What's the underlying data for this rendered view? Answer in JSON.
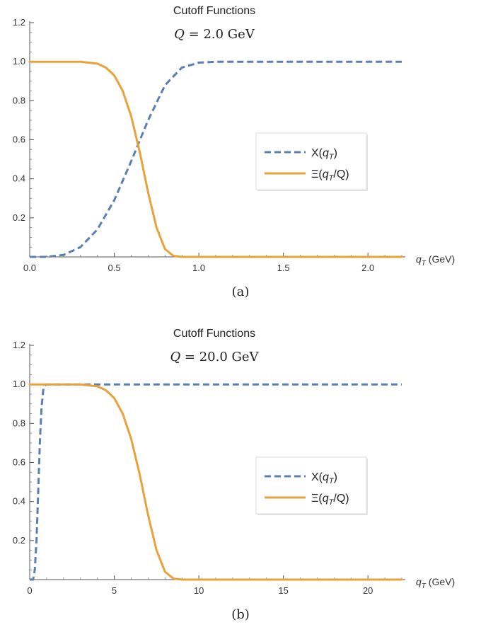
{
  "chart_data": [
    {
      "type": "line",
      "title": "Cutoff Functions",
      "subtitle": "Q = 2.0 GeV",
      "xlabel": "q_T (GeV)",
      "ylabel": "",
      "xlim": [
        0,
        2.2
      ],
      "ylim": [
        0,
        1.2
      ],
      "xticks": [
        0.0,
        0.5,
        1.0,
        1.5,
        2.0
      ],
      "xtick_labels": [
        "0.0",
        "0.5",
        "1.0",
        "1.5",
        "2.0"
      ],
      "yticks": [
        0.2,
        0.4,
        0.6,
        0.8,
        1.0,
        1.2
      ],
      "ytick_labels": [
        "0.2",
        "0.4",
        "0.6",
        "0.8",
        "1.0",
        "1.2"
      ],
      "legend_position": "right",
      "caption": "(a)",
      "series": [
        {
          "name": "X(q_T)",
          "style": "dashed",
          "color": "#5b7fb5",
          "x": [
            0.0,
            0.1,
            0.2,
            0.3,
            0.4,
            0.5,
            0.6,
            0.7,
            0.8,
            0.9,
            1.0,
            1.1,
            1.2,
            1.5,
            2.0,
            2.2
          ],
          "y": [
            0.0,
            0.0,
            0.01,
            0.05,
            0.14,
            0.29,
            0.49,
            0.7,
            0.88,
            0.97,
            0.995,
            1.0,
            1.0,
            1.0,
            1.0,
            1.0
          ]
        },
        {
          "name": "Ξ(q_T/Q)",
          "style": "solid",
          "color": "#e8a23a",
          "x": [
            0.0,
            0.1,
            0.2,
            0.3,
            0.4,
            0.45,
            0.5,
            0.55,
            0.6,
            0.65,
            0.7,
            0.75,
            0.8,
            0.85,
            0.9,
            1.0,
            2.2
          ],
          "y": [
            1.0,
            1.0,
            1.0,
            1.0,
            0.99,
            0.97,
            0.93,
            0.85,
            0.72,
            0.54,
            0.33,
            0.15,
            0.04,
            0.005,
            0.0,
            0.0,
            0.0
          ]
        }
      ]
    },
    {
      "type": "line",
      "title": "Cutoff Functions",
      "subtitle": "Q = 20.0 GeV",
      "xlabel": "q_T (GeV)",
      "ylabel": "",
      "xlim": [
        0,
        22
      ],
      "ylim": [
        0,
        1.2
      ],
      "xticks": [
        0,
        5,
        10,
        15,
        20
      ],
      "xtick_labels": [
        "0",
        "5",
        "10",
        "15",
        "20"
      ],
      "yticks": [
        0.2,
        0.4,
        0.6,
        0.8,
        1.0,
        1.2
      ],
      "ytick_labels": [
        "0.2",
        "0.4",
        "0.6",
        "0.8",
        "1.0",
        "1.2"
      ],
      "legend_position": "right",
      "caption": "(b)",
      "series": [
        {
          "name": "X(q_T)",
          "style": "dashed",
          "color": "#5b7fb5",
          "x": [
            0.0,
            0.2,
            0.3,
            0.4,
            0.5,
            0.6,
            0.7,
            0.8,
            0.9,
            1.0,
            1.2,
            2.0,
            22.0
          ],
          "y": [
            0.0,
            0.0,
            0.05,
            0.2,
            0.45,
            0.7,
            0.88,
            0.97,
            0.995,
            1.0,
            1.0,
            1.0,
            1.0
          ]
        },
        {
          "name": "Ξ(q_T/Q)",
          "style": "solid",
          "color": "#e8a23a",
          "x": [
            0.0,
            2.0,
            3.0,
            4.0,
            4.5,
            5.0,
            5.5,
            6.0,
            6.5,
            7.0,
            7.5,
            8.0,
            8.5,
            9.0,
            10.0,
            22.0
          ],
          "y": [
            1.0,
            1.0,
            1.0,
            0.99,
            0.97,
            0.93,
            0.85,
            0.72,
            0.54,
            0.33,
            0.15,
            0.04,
            0.005,
            0.0,
            0.0,
            0.0
          ]
        }
      ]
    }
  ]
}
